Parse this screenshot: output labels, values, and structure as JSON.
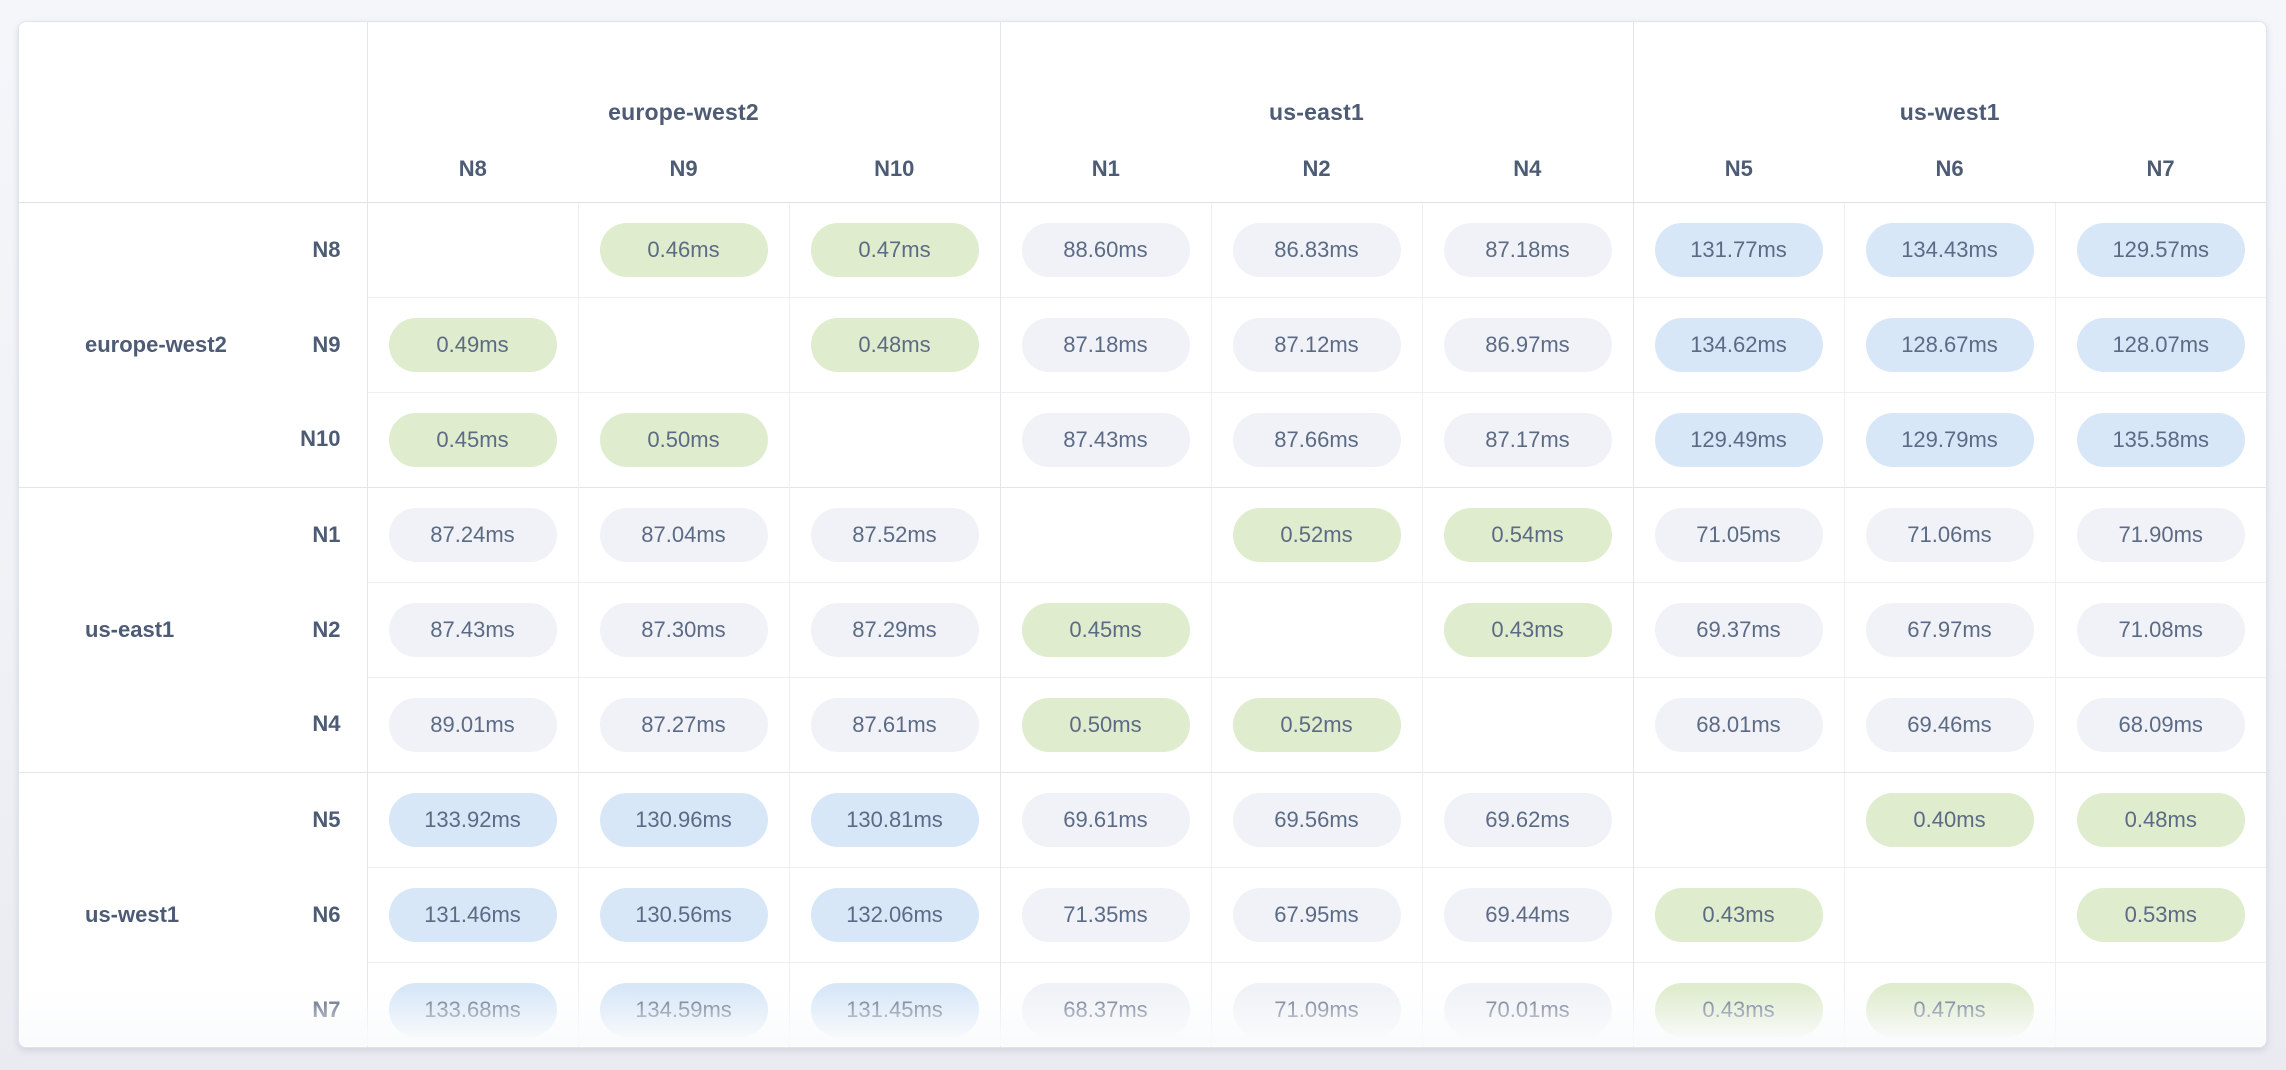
{
  "page": {
    "background": "#f0f2f7"
  },
  "matrix": {
    "unit": "ms",
    "column_groups": [
      {
        "name": "europe-west2",
        "nodes": [
          "N8",
          "N9",
          "N10"
        ]
      },
      {
        "name": "us-east1",
        "nodes": [
          "N1",
          "N2",
          "N4"
        ]
      },
      {
        "name": "us-west1",
        "nodes": [
          "N5",
          "N6",
          "N7"
        ]
      }
    ],
    "row_groups": [
      {
        "name": "europe-west2",
        "nodes": [
          "N8",
          "N9",
          "N10"
        ]
      },
      {
        "name": "us-east1",
        "nodes": [
          "N1",
          "N2",
          "N4"
        ]
      },
      {
        "name": "us-west1",
        "nodes": [
          "N5",
          "N6",
          "N7"
        ]
      }
    ],
    "cells": [
      [
        "",
        "0.46ms",
        "0.47ms",
        "88.60ms",
        "86.83ms",
        "87.18ms",
        "131.77ms",
        "134.43ms",
        "129.57ms"
      ],
      [
        "0.49ms",
        "",
        "0.48ms",
        "87.18ms",
        "87.12ms",
        "86.97ms",
        "134.62ms",
        "128.67ms",
        "128.07ms"
      ],
      [
        "0.45ms",
        "0.50ms",
        "",
        "87.43ms",
        "87.66ms",
        "87.17ms",
        "129.49ms",
        "129.79ms",
        "135.58ms"
      ],
      [
        "87.24ms",
        "87.04ms",
        "87.52ms",
        "",
        "0.52ms",
        "0.54ms",
        "71.05ms",
        "71.06ms",
        "71.90ms"
      ],
      [
        "87.43ms",
        "87.30ms",
        "87.29ms",
        "0.45ms",
        "",
        "0.43ms",
        "69.37ms",
        "67.97ms",
        "71.08ms"
      ],
      [
        "89.01ms",
        "87.27ms",
        "87.61ms",
        "0.50ms",
        "0.52ms",
        "",
        "68.01ms",
        "69.46ms",
        "68.09ms"
      ],
      [
        "133.92ms",
        "130.96ms",
        "130.81ms",
        "69.61ms",
        "69.56ms",
        "69.62ms",
        "",
        "0.40ms",
        "0.48ms"
      ],
      [
        "131.46ms",
        "130.56ms",
        "132.06ms",
        "71.35ms",
        "67.95ms",
        "69.44ms",
        "0.43ms",
        "",
        "0.53ms"
      ],
      [
        "133.68ms",
        "134.59ms",
        "131.45ms",
        "68.37ms",
        "71.09ms",
        "70.01ms",
        "0.43ms",
        "0.47ms",
        ""
      ]
    ],
    "tier_colors": {
      "same_region_fast": "#dfeccd",
      "inter_region_medium": "#f0f2f7",
      "inter_region_slow": "#d7e7f8"
    },
    "tier_thresholds_ms": {
      "fast_below": 1,
      "slow_at_or_above": 100
    }
  },
  "chart_data": {
    "type": "heatmap",
    "title": "Node-to-node network latency matrix",
    "x_groups": [
      "europe-west2",
      "us-east1",
      "us-west1"
    ],
    "x": [
      "N8",
      "N9",
      "N10",
      "N1",
      "N2",
      "N4",
      "N5",
      "N6",
      "N7"
    ],
    "y_groups": [
      "europe-west2",
      "us-east1",
      "us-west1"
    ],
    "y": [
      "N8",
      "N9",
      "N10",
      "N1",
      "N2",
      "N4",
      "N5",
      "N6",
      "N7"
    ],
    "values_ms": [
      [
        null,
        0.46,
        0.47,
        88.6,
        86.83,
        87.18,
        131.77,
        134.43,
        129.57
      ],
      [
        0.49,
        null,
        0.48,
        87.18,
        87.12,
        86.97,
        134.62,
        128.67,
        128.07
      ],
      [
        0.45,
        0.5,
        null,
        87.43,
        87.66,
        87.17,
        129.49,
        129.79,
        135.58
      ],
      [
        87.24,
        87.04,
        87.52,
        null,
        0.52,
        0.54,
        71.05,
        71.06,
        71.9
      ],
      [
        87.43,
        87.3,
        87.29,
        0.45,
        null,
        0.43,
        69.37,
        67.97,
        71.08
      ],
      [
        89.01,
        87.27,
        87.61,
        0.5,
        0.52,
        null,
        68.01,
        69.46,
        68.09
      ],
      [
        133.92,
        130.96,
        130.81,
        69.61,
        69.56,
        69.62,
        null,
        0.4,
        0.48
      ],
      [
        131.46,
        130.56,
        132.06,
        71.35,
        67.95,
        69.44,
        0.43,
        null,
        0.53
      ],
      [
        133.68,
        134.59,
        131.45,
        68.37,
        71.09,
        70.01,
        0.43,
        0.47,
        null
      ]
    ]
  }
}
